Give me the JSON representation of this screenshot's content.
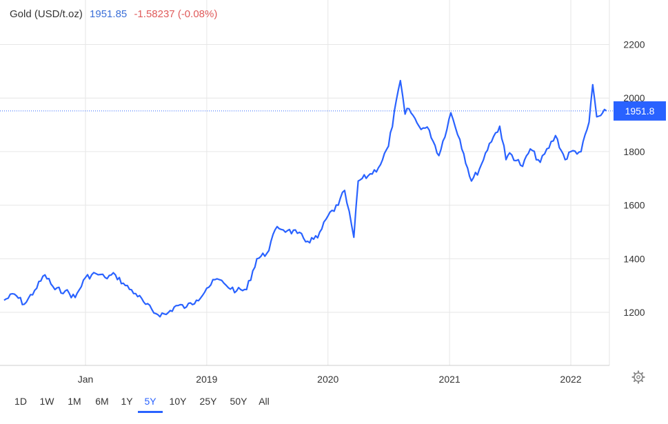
{
  "header": {
    "title": "Gold (USD/t.oz)",
    "price": "1951.85",
    "change": "-1.58237 (-0.08%)"
  },
  "ranges": [
    "1D",
    "1W",
    "1M",
    "6M",
    "1Y",
    "5Y",
    "10Y",
    "25Y",
    "50Y",
    "All"
  ],
  "active_range": "5Y",
  "last_price_tag": "1951.8",
  "colors": {
    "line": "#2962ff",
    "price": "#3a6fd8",
    "change": "#e05a5a",
    "grid": "#e6e6e6"
  },
  "icons": {
    "settings": "gear-icon"
  },
  "chart_data": {
    "type": "line",
    "title": "Gold (USD/t.oz)",
    "xlabel": "",
    "ylabel": "",
    "x_ticks": [
      "Jan",
      "2019",
      "2020",
      "2021",
      "2022"
    ],
    "y_ticks": [
      1200,
      1400,
      1600,
      1800,
      2000,
      2200
    ],
    "ylim": [
      1000,
      2230
    ],
    "xlim": [
      "2017-05-01",
      "2022-05-01"
    ],
    "grid": true,
    "last_value": 1951.8,
    "series": [
      {
        "values": [
          [
            "2017-05-01",
            1245
          ],
          [
            "2017-06-01",
            1268
          ],
          [
            "2017-07-01",
            1230
          ],
          [
            "2017-08-01",
            1282
          ],
          [
            "2017-09-01",
            1340
          ],
          [
            "2017-10-01",
            1285
          ],
          [
            "2017-11-01",
            1280
          ],
          [
            "2017-12-01",
            1255
          ],
          [
            "2018-01-01",
            1330
          ],
          [
            "2018-02-01",
            1345
          ],
          [
            "2018-03-01",
            1330
          ],
          [
            "2018-04-01",
            1340
          ],
          [
            "2018-05-01",
            1300
          ],
          [
            "2018-06-01",
            1270
          ],
          [
            "2018-07-01",
            1230
          ],
          [
            "2018-08-01",
            1195
          ],
          [
            "2018-09-01",
            1192
          ],
          [
            "2018-10-01",
            1225
          ],
          [
            "2018-11-01",
            1220
          ],
          [
            "2018-12-01",
            1245
          ],
          [
            "2019-01-01",
            1290
          ],
          [
            "2019-02-01",
            1325
          ],
          [
            "2019-03-01",
            1300
          ],
          [
            "2019-04-01",
            1280
          ],
          [
            "2019-05-01",
            1285
          ],
          [
            "2019-06-01",
            1400
          ],
          [
            "2019-07-01",
            1420
          ],
          [
            "2019-08-01",
            1520
          ],
          [
            "2019-09-01",
            1505
          ],
          [
            "2019-10-01",
            1495
          ],
          [
            "2019-11-01",
            1465
          ],
          [
            "2019-12-01",
            1478
          ],
          [
            "2020-01-01",
            1560
          ],
          [
            "2020-02-01",
            1600
          ],
          [
            "2020-02-20",
            1655
          ],
          [
            "2020-03-19",
            1480
          ],
          [
            "2020-04-01",
            1690
          ],
          [
            "2020-05-01",
            1710
          ],
          [
            "2020-06-01",
            1740
          ],
          [
            "2020-07-01",
            1820
          ],
          [
            "2020-08-06",
            2065
          ],
          [
            "2020-08-20",
            1940
          ],
          [
            "2020-09-01",
            1960
          ],
          [
            "2020-10-01",
            1895
          ],
          [
            "2020-11-01",
            1880
          ],
          [
            "2020-11-30",
            1785
          ],
          [
            "2021-01-05",
            1945
          ],
          [
            "2021-02-01",
            1845
          ],
          [
            "2021-03-08",
            1690
          ],
          [
            "2021-04-01",
            1735
          ],
          [
            "2021-05-01",
            1830
          ],
          [
            "2021-06-01",
            1895
          ],
          [
            "2021-06-20",
            1770
          ],
          [
            "2021-07-01",
            1795
          ],
          [
            "2021-08-09",
            1745
          ],
          [
            "2021-09-01",
            1810
          ],
          [
            "2021-10-01",
            1760
          ],
          [
            "2021-11-16",
            1860
          ],
          [
            "2021-12-15",
            1770
          ],
          [
            "2022-01-01",
            1800
          ],
          [
            "2022-02-01",
            1800
          ],
          [
            "2022-02-25",
            1910
          ],
          [
            "2022-03-08",
            2050
          ],
          [
            "2022-03-20",
            1930
          ],
          [
            "2022-04-01",
            1935
          ],
          [
            "2022-04-18",
            1952
          ]
        ]
      }
    ]
  }
}
